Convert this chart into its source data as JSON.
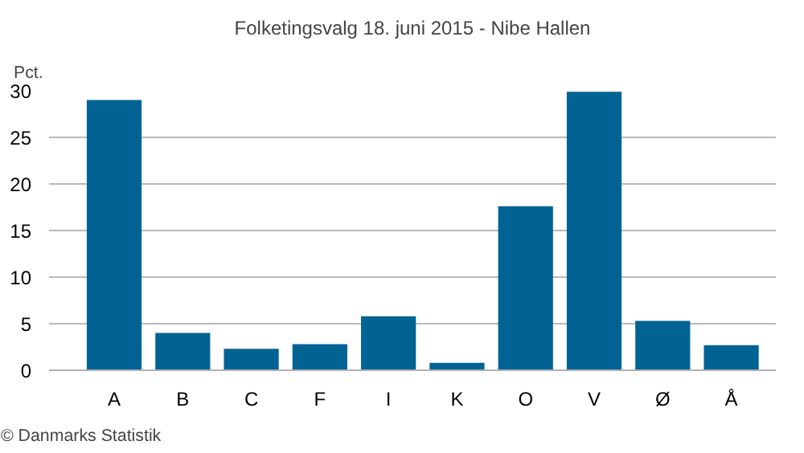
{
  "chart_data": {
    "type": "bar",
    "title": "Folketingsvalg 18. juni 2015 - Nibe Hallen",
    "ylabel": "Pct.",
    "categories": [
      "A",
      "B",
      "C",
      "F",
      "I",
      "K",
      "O",
      "V",
      "Ø",
      "Å"
    ],
    "values": [
      29.0,
      4.0,
      2.3,
      2.8,
      5.8,
      0.8,
      17.6,
      29.9,
      5.3,
      2.7
    ],
    "color": "#006394",
    "ylim": [
      0,
      30
    ],
    "yticks": [
      0,
      5,
      10,
      15,
      20,
      25,
      30
    ],
    "grid": "y",
    "annotations": [
      "© Danmarks Statistik"
    ]
  }
}
